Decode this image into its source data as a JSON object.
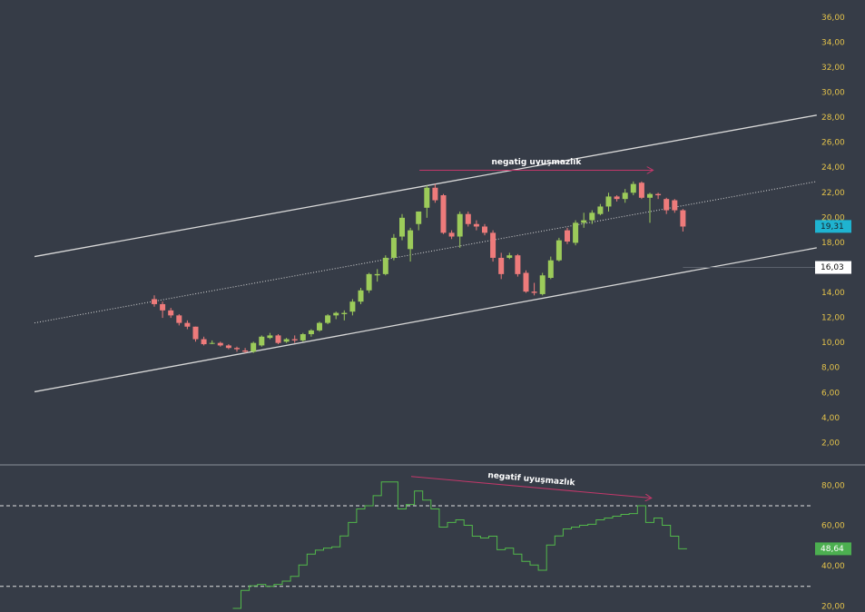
{
  "chart_data": {
    "type": "candlestick",
    "candles": {
      "open": [
        13.5,
        13.1,
        12.6,
        12.2,
        11.6,
        11.3,
        10.3,
        10.0,
        10.0,
        9.8,
        9.6,
        9.4,
        9.3,
        9.8,
        10.4,
        10.6,
        10.1,
        10.3,
        10.2,
        10.7,
        11.0,
        11.6,
        12.2,
        12.3,
        12.5,
        13.3,
        14.2,
        15.4,
        15.5,
        16.8,
        18.5,
        17.5,
        19.5,
        20.8,
        22.4,
        21.8,
        18.8,
        18.5,
        20.3,
        19.5,
        19.3,
        18.8,
        16.8,
        16.8,
        17.0,
        15.6,
        14.1,
        13.9,
        15.2,
        16.6,
        19.0,
        18.0,
        19.6,
        19.8,
        20.3,
        20.9,
        21.7,
        21.5,
        22.0,
        22.8,
        21.6,
        21.9,
        21.5,
        21.4,
        20.6
      ],
      "high": [
        13.8,
        13.3,
        12.8,
        12.3,
        11.8,
        11.3,
        10.5,
        10.2,
        10.1,
        9.9,
        9.7,
        9.6,
        10.1,
        10.6,
        10.8,
        10.7,
        10.4,
        10.6,
        10.8,
        11.1,
        11.7,
        12.3,
        12.5,
        12.6,
        13.5,
        14.4,
        15.6,
        15.9,
        17.0,
        18.7,
        20.3,
        19.2,
        20.5,
        22.6,
        22.7,
        21.9,
        19.0,
        20.5,
        20.5,
        19.8,
        19.5,
        19.0,
        17.2,
        17.2,
        17.1,
        15.8,
        14.8,
        15.6,
        16.9,
        18.4,
        19.2,
        19.8,
        20.4,
        20.6,
        21.1,
        22.0,
        21.8,
        22.3,
        22.9,
        22.9,
        22.0,
        22.0,
        21.6,
        21.5,
        20.7
      ],
      "low": [
        12.9,
        12.0,
        12.0,
        11.4,
        11.1,
        10.1,
        9.8,
        9.9,
        9.7,
        9.5,
        9.3,
        9.2,
        9.2,
        9.7,
        10.3,
        9.9,
        10.0,
        10.0,
        10.1,
        10.5,
        10.9,
        11.5,
        11.9,
        11.8,
        12.2,
        13.1,
        14.0,
        14.9,
        15.4,
        16.6,
        18.2,
        16.5,
        19.0,
        20.0,
        21.2,
        18.7,
        18.3,
        17.6,
        19.3,
        19.0,
        18.6,
        16.5,
        15.1,
        16.7,
        15.3,
        14.0,
        13.8,
        13.8,
        15.1,
        16.5,
        17.9,
        17.8,
        19.2,
        19.5,
        20.2,
        20.5,
        21.3,
        21.2,
        21.8,
        21.5,
        19.6,
        21.5,
        20.3,
        20.4,
        18.9
      ],
      "close": [
        13.1,
        12.6,
        12.2,
        11.6,
        11.3,
        10.3,
        9.9,
        10.0,
        9.8,
        9.6,
        9.5,
        9.3,
        10.0,
        10.5,
        10.6,
        10.0,
        10.3,
        10.2,
        10.7,
        11.0,
        11.6,
        12.2,
        12.4,
        12.4,
        13.3,
        14.2,
        15.5,
        15.5,
        16.8,
        18.4,
        20.0,
        19.0,
        20.5,
        22.4,
        21.4,
        18.8,
        18.5,
        20.3,
        19.5,
        19.3,
        18.8,
        16.8,
        15.5,
        17.0,
        15.5,
        14.1,
        14.0,
        15.4,
        16.6,
        18.2,
        18.1,
        19.6,
        19.8,
        20.4,
        20.9,
        21.7,
        21.5,
        22.0,
        22.7,
        21.6,
        21.9,
        21.8,
        20.6,
        20.6,
        19.3
      ],
      "up_color": "#9ccb5a",
      "down_color": "#ee7b7b"
    },
    "ylim": [
      0.4,
      37.4
    ],
    "yticks": [
      {
        "value": 2,
        "label": "2,00"
      },
      {
        "value": 4,
        "label": "4,00"
      },
      {
        "value": 6,
        "label": "6,00"
      },
      {
        "value": 8,
        "label": "8,00"
      },
      {
        "value": 10,
        "label": "10,00"
      },
      {
        "value": 12,
        "label": "12,00"
      },
      {
        "value": 14,
        "label": "14,00"
      },
      {
        "value": 16,
        "label": "16,00"
      },
      {
        "value": 18,
        "label": "18,00"
      },
      {
        "value": 20,
        "label": "20,00"
      },
      {
        "value": 22,
        "label": "22,00"
      },
      {
        "value": 24,
        "label": "24,00"
      },
      {
        "value": 26,
        "label": "26,00"
      },
      {
        "value": 28,
        "label": "28,00"
      },
      {
        "value": 30,
        "label": "30,00"
      },
      {
        "value": 32,
        "label": "32,00"
      },
      {
        "value": 34,
        "label": "34,00"
      },
      {
        "value": 36,
        "label": "36,00"
      }
    ],
    "channels": [
      {
        "x": [
          -14.5,
          80.2
        ],
        "y": [
          16.9,
          28.2
        ],
        "style": "solid"
      },
      {
        "x": [
          -14.5,
          80.2
        ],
        "y": [
          11.6,
          22.9
        ],
        "style": "dotted"
      },
      {
        "x": [
          -14.5,
          80.2
        ],
        "y": [
          6.1,
          17.6
        ],
        "style": "solid"
      }
    ],
    "annotation": {
      "text": "negatig uyuşmazlık",
      "x": [
        32.1,
        60.4
      ],
      "y": [
        23.8,
        23.8
      ],
      "color": "#c2386a"
    },
    "price_tags": [
      {
        "value": 19.31,
        "label": "19,31",
        "color": "#1fb3d0",
        "text_color": "#1a1f27"
      },
      {
        "value": 16.03,
        "label": "16,03",
        "color": "#ffffff",
        "text_color": "#111111"
      }
    ],
    "rsi": {
      "values": [
        null,
        null,
        null,
        null,
        null,
        null,
        null,
        null,
        null,
        null,
        19.1,
        28,
        30.3,
        31,
        30,
        31,
        32.6,
        35,
        40.6,
        46,
        48,
        49,
        49.6,
        55,
        61.7,
        68.4,
        70,
        75,
        81.8,
        81.8,
        68.4,
        70.6,
        77.3,
        72.8,
        68.4,
        59.4,
        61.7,
        63,
        60.3,
        54.9,
        54,
        54.9,
        48.2,
        49,
        46,
        42.4,
        40.6,
        38,
        50.5,
        55,
        58.5,
        59.4,
        60.3,
        60.8,
        63,
        63.9,
        64.8,
        65.7,
        66.1,
        70,
        61.7,
        63.9,
        60.3,
        54.9,
        48.64
      ],
      "color": "#52b84a",
      "ylim": [
        17.3,
        89.8
      ],
      "yticks": [
        {
          "value": 20,
          "label": "20,00"
        },
        {
          "value": 40,
          "label": "40,00"
        },
        {
          "value": 60,
          "label": "60,00"
        },
        {
          "value": 80,
          "label": "80,00"
        }
      ],
      "levels": [
        70,
        30
      ],
      "tag": {
        "value": 48.64,
        "label": "48,64",
        "color": "#4caf50"
      },
      "annotation": {
        "text": "negatif uyuşmazlık",
        "x": [
          31.1,
          60.2
        ],
        "y": [
          84.5,
          73.8
        ],
        "color": "#c2386a"
      }
    }
  }
}
